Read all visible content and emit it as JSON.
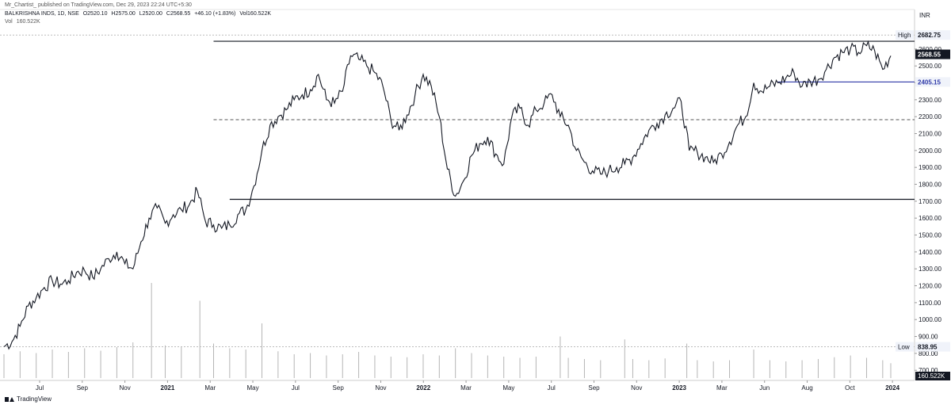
{
  "header": {
    "publish_line": "Mr_Chartist_ published on TradingView.com, Dec 29, 2023 22:24 UTC+5:30",
    "symbol": "BALKRISHNA INDS, 1D, NSE",
    "open": "O2520.10",
    "high": "H2575.00",
    "low": "L2520.00",
    "close": "C2568.55",
    "change": "+46.10 (+1.83%)",
    "volume": "Vol160.522K",
    "vol_label": "Vol",
    "vol_value": "160.522K"
  },
  "footer": {
    "brand": "TradingView"
  },
  "colors": {
    "blue_line": "#2f3aa8",
    "text": "#131722",
    "grid": "#d7d7d7"
  },
  "chart_data": {
    "type": "line",
    "x_ticks": [
      "Jul",
      "Sep",
      "Nov",
      "2021",
      "Mar",
      "May",
      "Jul",
      "Sep",
      "Nov",
      "2022",
      "Mar",
      "May",
      "Jul",
      "Sep",
      "Nov",
      "2023",
      "Mar",
      "Jun",
      "Aug",
      "Oct",
      "2024"
    ],
    "currency": "INR",
    "y_ticks": [
      700,
      800,
      900,
      1000,
      1100,
      1200,
      1300,
      1400,
      1500,
      1600,
      1700,
      1800,
      1900,
      2000,
      2100,
      2200,
      2300,
      2400,
      2500,
      2600
    ],
    "y_tick_labels": [
      "700.00",
      "800.00",
      "900.00",
      "1000.00",
      "1100.00",
      "1200.00",
      "1300.00",
      "1400.00",
      "1500.00",
      "1600.00",
      "1700.00",
      "1800.00",
      "1900.00",
      "2000.00",
      "2100.00",
      "2200.00",
      "2300.00",
      "2400.00",
      "2500.00",
      "2600.00"
    ],
    "ylim": [
      640,
      2740
    ],
    "xlim": [
      0,
      1100
    ],
    "series": [
      {
        "values": [
          [
            0,
            840
          ],
          [
            10,
            870
          ],
          [
            20,
            960
          ],
          [
            30,
            1080
          ],
          [
            40,
            1130
          ],
          [
            50,
            1190
          ],
          [
            60,
            1230
          ],
          [
            70,
            1210
          ],
          [
            80,
            1230
          ],
          [
            90,
            1280
          ],
          [
            100,
            1290
          ],
          [
            110,
            1250
          ],
          [
            120,
            1300
          ],
          [
            130,
            1360
          ],
          [
            140,
            1400
          ],
          [
            150,
            1330
          ],
          [
            160,
            1300
          ],
          [
            170,
            1460
          ],
          [
            180,
            1600
          ],
          [
            190,
            1660
          ],
          [
            200,
            1570
          ],
          [
            210,
            1620
          ],
          [
            220,
            1650
          ],
          [
            230,
            1680
          ],
          [
            240,
            1760
          ],
          [
            250,
            1580
          ],
          [
            260,
            1560
          ],
          [
            270,
            1540
          ],
          [
            280,
            1560
          ],
          [
            290,
            1620
          ],
          [
            300,
            1650
          ],
          [
            310,
            1790
          ],
          [
            320,
            2000
          ],
          [
            330,
            2150
          ],
          [
            340,
            2200
          ],
          [
            350,
            2240
          ],
          [
            360,
            2300
          ],
          [
            370,
            2330
          ],
          [
            380,
            2360
          ],
          [
            390,
            2450
          ],
          [
            400,
            2300
          ],
          [
            410,
            2280
          ],
          [
            420,
            2350
          ],
          [
            430,
            2560
          ],
          [
            440,
            2540
          ],
          [
            450,
            2500
          ],
          [
            460,
            2460
          ],
          [
            470,
            2380
          ],
          [
            480,
            2180
          ],
          [
            490,
            2120
          ],
          [
            500,
            2210
          ],
          [
            510,
            2330
          ],
          [
            520,
            2450
          ],
          [
            530,
            2380
          ],
          [
            540,
            2200
          ],
          [
            550,
            1890
          ],
          [
            560,
            1730
          ],
          [
            570,
            1820
          ],
          [
            580,
            1970
          ],
          [
            590,
            2040
          ],
          [
            600,
            2080
          ],
          [
            610,
            1980
          ],
          [
            620,
            1920
          ],
          [
            630,
            2200
          ],
          [
            640,
            2250
          ],
          [
            650,
            2150
          ],
          [
            660,
            2240
          ],
          [
            670,
            2280
          ],
          [
            680,
            2330
          ],
          [
            690,
            2200
          ],
          [
            700,
            2150
          ],
          [
            710,
            2000
          ],
          [
            720,
            1930
          ],
          [
            730,
            1880
          ],
          [
            740,
            1860
          ],
          [
            750,
            1880
          ],
          [
            760,
            1900
          ],
          [
            770,
            1920
          ],
          [
            780,
            1960
          ],
          [
            790,
            2040
          ],
          [
            800,
            2120
          ],
          [
            810,
            2160
          ],
          [
            820,
            2210
          ],
          [
            830,
            2250
          ],
          [
            840,
            2290
          ],
          [
            850,
            2000
          ],
          [
            860,
            1990
          ],
          [
            870,
            1960
          ],
          [
            880,
            1930
          ],
          [
            890,
            1980
          ],
          [
            900,
            2050
          ],
          [
            910,
            2150
          ],
          [
            920,
            2200
          ],
          [
            930,
            2400
          ],
          [
            940,
            2350
          ],
          [
            950,
            2380
          ],
          [
            960,
            2400
          ],
          [
            970,
            2430
          ],
          [
            980,
            2460
          ],
          [
            990,
            2380
          ],
          [
            1000,
            2410
          ],
          [
            1010,
            2420
          ],
          [
            1020,
            2480
          ],
          [
            1030,
            2550
          ],
          [
            1040,
            2580
          ],
          [
            1050,
            2600
          ],
          [
            1060,
            2580
          ],
          [
            1070,
            2620
          ],
          [
            1080,
            2590
          ],
          [
            1090,
            2480
          ],
          [
            1100,
            2560
          ]
        ]
      }
    ],
    "volume": [
      [
        0,
        40
      ],
      [
        20,
        45
      ],
      [
        40,
        42
      ],
      [
        60,
        48
      ],
      [
        80,
        44
      ],
      [
        100,
        50
      ],
      [
        120,
        46
      ],
      [
        140,
        52
      ],
      [
        160,
        60
      ],
      [
        183,
        160
      ],
      [
        200,
        55
      ],
      [
        220,
        52
      ],
      [
        243,
        130
      ],
      [
        260,
        58
      ],
      [
        280,
        50
      ],
      [
        300,
        48
      ],
      [
        320,
        92
      ],
      [
        340,
        45
      ],
      [
        360,
        40
      ],
      [
        380,
        42
      ],
      [
        400,
        38
      ],
      [
        420,
        40
      ],
      [
        440,
        44
      ],
      [
        460,
        38
      ],
      [
        480,
        36
      ],
      [
        500,
        35
      ],
      [
        520,
        40
      ],
      [
        540,
        38
      ],
      [
        560,
        50
      ],
      [
        580,
        42
      ],
      [
        600,
        38
      ],
      [
        620,
        36
      ],
      [
        640,
        34
      ],
      [
        660,
        36
      ],
      [
        690,
        70
      ],
      [
        700,
        34
      ],
      [
        720,
        32
      ],
      [
        740,
        30
      ],
      [
        770,
        65
      ],
      [
        780,
        32
      ],
      [
        800,
        30
      ],
      [
        820,
        33
      ],
      [
        847,
        58
      ],
      [
        860,
        30
      ],
      [
        880,
        28
      ],
      [
        900,
        30
      ],
      [
        930,
        48
      ],
      [
        950,
        30
      ],
      [
        970,
        28
      ],
      [
        990,
        30
      ],
      [
        1010,
        32
      ],
      [
        1030,
        35
      ],
      [
        1050,
        38
      ],
      [
        1070,
        34
      ],
      [
        1090,
        30
      ],
      [
        1100,
        25
      ]
    ],
    "annotations": {
      "resistance": 2646,
      "support": 1711,
      "mid_dashed": 2182,
      "recent_support": 2405.15,
      "high": 2682.75,
      "low": 838.95,
      "last": 2568.55,
      "high_label": "High",
      "high_value": "2682.75",
      "low_label": "Low",
      "low_value": "838.95",
      "last_value": "2568.55",
      "recent_support_value": "2405.15",
      "volume_value": "160.522K"
    }
  }
}
